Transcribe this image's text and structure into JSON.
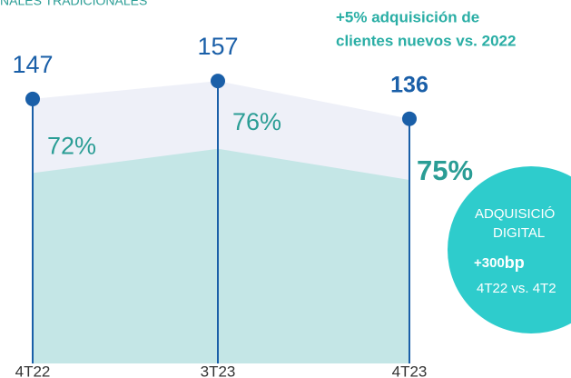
{
  "chart_data": {
    "type": "area",
    "title": "NALES TRADICIONALES",
    "annotation": [
      "+5% adquisición de",
      "clientes nuevos vs. 2022"
    ],
    "categories": [
      "4T22",
      "3T23",
      "4T23"
    ],
    "series": [
      {
        "values": [
          147,
          157,
          136
        ],
        "color": "#eef0f8",
        "line_color": "#1a5fa8"
      },
      {
        "values": [
          72,
          76,
          75
        ],
        "value_labels": [
          "72%",
          "76%",
          "75%"
        ],
        "color": "#c4e6e6"
      }
    ],
    "ylim": [
      0,
      202
    ],
    "bubble": {
      "lines": [
        "ADQUISICIÓ",
        "DIGITAL"
      ],
      "value": "+300",
      "unit": "bp",
      "note": "4T22 vs. 4T2",
      "color": "#2ecccc"
    }
  }
}
